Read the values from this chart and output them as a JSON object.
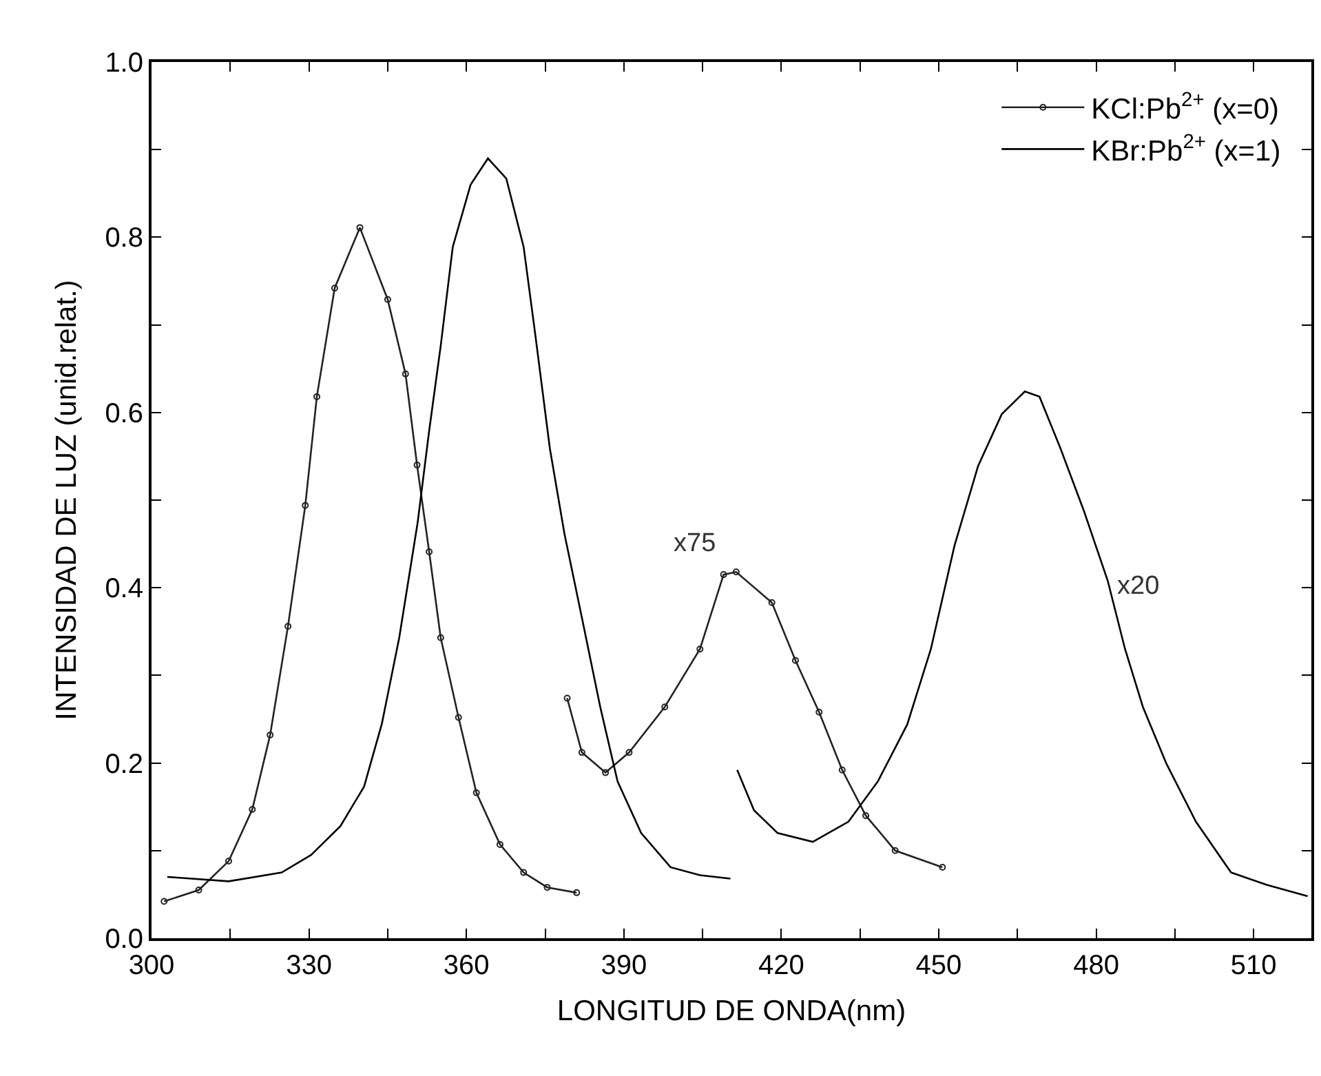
{
  "chart_data": {
    "type": "line",
    "xlabel": "LONGITUD DE ONDA(nm)",
    "ylabel": "INTENSIDAD DE LUZ (unid.relat.)",
    "xlim": [
      300,
      521
    ],
    "ylim": [
      0,
      1.0
    ],
    "xticks": [
      300,
      {
        "value": 315,
        "label": null
      },
      330,
      {
        "value": 345,
        "label": null
      },
      360,
      {
        "value": 375,
        "label": null
      },
      390,
      {
        "value": 405,
        "label": null
      },
      420,
      {
        "value": 435,
        "label": null
      },
      450,
      {
        "value": 465,
        "label": null
      },
      480,
      {
        "value": 495,
        "label": null
      },
      510
    ],
    "yticks": [
      {
        "value": 0,
        "label": "0.0"
      },
      {
        "value": 0.1,
        "label": null
      },
      {
        "value": 0.2,
        "label": "0.2"
      },
      {
        "value": 0.3,
        "label": null
      },
      {
        "value": 0.4,
        "label": "0.4"
      },
      {
        "value": 0.5,
        "label": null
      },
      {
        "value": 0.6,
        "label": "0.6"
      },
      {
        "value": 0.7,
        "label": null
      },
      {
        "value": 0.8,
        "label": "0.8"
      },
      {
        "value": 0.9,
        "label": null
      },
      {
        "value": 1.0,
        "label": "1.0"
      }
    ],
    "legend": "top right",
    "line_style": "solid",
    "series": [
      {
        "name": "KCl:Pb$^{2+}$ (x=0)",
        "color": "#222222",
        "marker": "circle",
        "x": [
          302.4,
          309,
          314.7,
          319.2,
          322.6,
          326,
          329.3,
          331.5,
          334.9,
          339.7,
          345,
          348.4,
          350.6,
          352.9,
          355.1,
          358.5,
          361.9,
          366.4,
          370.9,
          375.4,
          381
        ],
        "values": [
          0.042,
          0.055,
          0.088,
          0.147,
          0.232,
          0.356,
          0.494,
          0.618,
          0.742,
          0.811,
          0.729,
          0.644,
          0.54,
          0.441,
          0.343,
          0.252,
          0.166,
          0.107,
          0.075,
          0.058,
          0.052
        ]
      },
      {
        "color": "#222222",
        "marker": "circle",
        "x": [
          379.2,
          382,
          386.5,
          391,
          397.8,
          404.5,
          409,
          411.4,
          418.2,
          422.7,
          427.2,
          431.6,
          436.1,
          441.7,
          450.7
        ],
        "values": [
          0.274,
          0.212,
          0.189,
          0.212,
          0.264,
          0.33,
          0.415,
          0.418,
          0.383,
          0.317,
          0.258,
          0.192,
          0.14,
          0.1,
          0.081
        ]
      },
      {
        "name": "KBr:Pb$^{2+}$ (x=1)",
        "color": "#000000",
        "marker": "none",
        "x": [
          303,
          314.7,
          324.8,
          330.4,
          336,
          340.5,
          343.9,
          347.2,
          350.7,
          352.9,
          355.1,
          357.4,
          360.8,
          364.1,
          367.6,
          370.9,
          373.1,
          375.9,
          378.7,
          382.1,
          385.5,
          388.8,
          393.3,
          398.9,
          404.5,
          410.3
        ],
        "values": [
          0.07,
          0.065,
          0.075,
          0.095,
          0.128,
          0.173,
          0.245,
          0.343,
          0.474,
          0.579,
          0.676,
          0.789,
          0.86,
          0.89,
          0.867,
          0.789,
          0.69,
          0.559,
          0.461,
          0.363,
          0.264,
          0.179,
          0.12,
          0.081,
          0.072,
          0.068
        ]
      },
      {
        "color": "#000000",
        "marker": "none",
        "x": [
          411.6,
          414.8,
          419.3,
          426,
          432.8,
          438.4,
          444,
          448.5,
          453,
          457.5,
          462,
          466.4,
          469.2,
          473.2,
          477.7,
          482.2,
          485.5,
          488.9,
          493.4,
          499,
          505.7,
          512.5,
          520.3
        ],
        "values": [
          0.192,
          0.146,
          0.12,
          0.11,
          0.133,
          0.179,
          0.244,
          0.33,
          0.448,
          0.539,
          0.598,
          0.624,
          0.618,
          0.559,
          0.487,
          0.408,
          0.33,
          0.264,
          0.199,
          0.133,
          0.075,
          0.061,
          0.048
        ]
      }
    ],
    "annotations": [
      {
        "text": "x75",
        "x": 411.4,
        "y": 0.418
      },
      {
        "text": "x20",
        "x": 477.7,
        "y": 0.487
      }
    ]
  }
}
